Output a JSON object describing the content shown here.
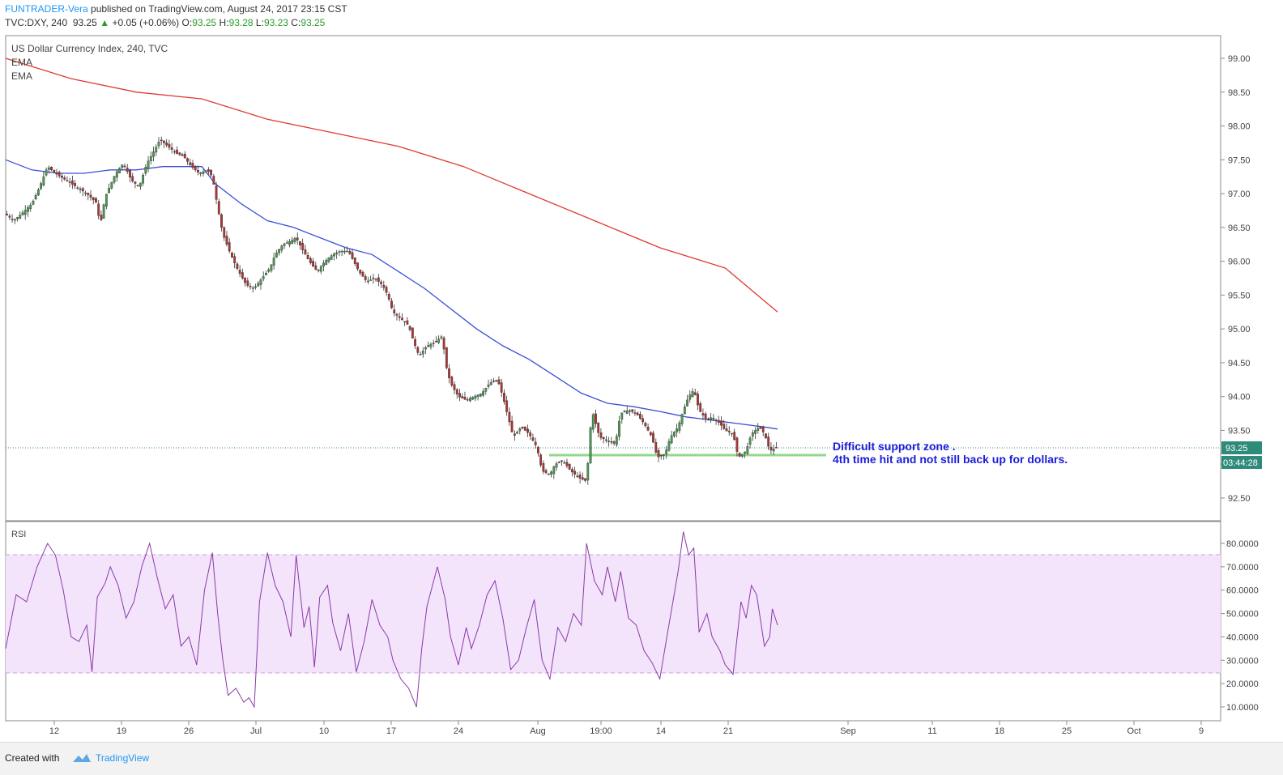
{
  "header": {
    "author": "FUNTRADER-Vera",
    "published_text": " published on TradingView.com, August 24, 2017 23:15 CST",
    "symbol": "TVC:DXY, 240",
    "last": "93.25",
    "change": "+0.05 (+0.06%)",
    "ohlc": {
      "O": "93.25",
      "H": "93.28",
      "L": "93.23",
      "C": "93.25"
    }
  },
  "legend": {
    "title": "US Dollar Currency Index, 240, TVC",
    "ema1": "EMA",
    "ema2": "EMA",
    "rsi": "RSI"
  },
  "annotation": {
    "line1": "Difficult support zone .",
    "line2": "4th time hit and not still back up for dollars."
  },
  "price_label": "93.25",
  "countdown_label": "03:44:28",
  "footer": {
    "created_with": "Created with",
    "brand": "TradingView"
  },
  "colors": {
    "up": "#4a9a52",
    "down": "#b03434",
    "ema_fast": "#3c4fd6",
    "ema_slow": "#e03a32",
    "rsi": "#8a3aa8",
    "support": "#90d88a",
    "annotation": "#1c1cd8"
  },
  "chart_data": {
    "type": "line",
    "price_axis": {
      "ylim": [
        92.2,
        99.2
      ],
      "ticks": [
        "99.00",
        "98.50",
        "98.00",
        "97.50",
        "97.00",
        "96.50",
        "96.00",
        "95.50",
        "95.00",
        "94.50",
        "94.00",
        "93.50",
        "93.00",
        "92.50"
      ]
    },
    "rsi_axis": {
      "ylim": [
        5,
        88
      ],
      "ticks": [
        "80.0000",
        "70.0000",
        "60.0000",
        "50.0000",
        "40.0000",
        "30.0000",
        "20.0000",
        "10.0000"
      ],
      "band": [
        25,
        75
      ]
    },
    "x_ticks": [
      "12",
      "19",
      "26",
      "Jul",
      "10",
      "17",
      "24",
      "Aug",
      "19:00",
      "14",
      "21",
      "Sep",
      "11",
      "18",
      "25",
      "Oct",
      "9"
    ],
    "series": [
      {
        "key": "close",
        "path": [
          [
            0,
            96.7
          ],
          [
            6,
            96.6
          ],
          [
            12,
            96.7
          ],
          [
            20,
            96.85
          ],
          [
            26,
            97.1
          ],
          [
            32,
            97.4
          ],
          [
            38,
            97.3
          ],
          [
            46,
            97.2
          ],
          [
            54,
            97.1
          ],
          [
            62,
            97.0
          ],
          [
            70,
            96.85
          ],
          [
            72,
            96.5
          ],
          [
            76,
            96.95
          ],
          [
            84,
            97.3
          ],
          [
            90,
            97.45
          ],
          [
            96,
            97.2
          ],
          [
            102,
            97.1
          ],
          [
            108,
            97.45
          ],
          [
            114,
            97.65
          ],
          [
            118,
            97.8
          ],
          [
            124,
            97.7
          ],
          [
            130,
            97.6
          ],
          [
            136,
            97.55
          ],
          [
            142,
            97.4
          ],
          [
            148,
            97.3
          ],
          [
            154,
            97.35
          ],
          [
            158,
            97.25
          ],
          [
            162,
            96.8
          ],
          [
            166,
            96.4
          ],
          [
            172,
            96.1
          ],
          [
            178,
            95.85
          ],
          [
            184,
            95.65
          ],
          [
            190,
            95.6
          ],
          [
            196,
            95.75
          ],
          [
            202,
            95.9
          ],
          [
            206,
            96.1
          ],
          [
            212,
            96.25
          ],
          [
            218,
            96.3
          ],
          [
            222,
            96.35
          ],
          [
            226,
            96.2
          ],
          [
            232,
            96.0
          ],
          [
            238,
            95.85
          ],
          [
            244,
            96.0
          ],
          [
            250,
            96.1
          ],
          [
            256,
            96.15
          ],
          [
            262,
            96.15
          ],
          [
            266,
            96.0
          ],
          [
            270,
            95.85
          ],
          [
            276,
            95.7
          ],
          [
            282,
            95.75
          ],
          [
            288,
            95.65
          ],
          [
            292,
            95.5
          ],
          [
            296,
            95.25
          ],
          [
            302,
            95.15
          ],
          [
            308,
            95.05
          ],
          [
            312,
            94.8
          ],
          [
            316,
            94.6
          ],
          [
            322,
            94.75
          ],
          [
            328,
            94.8
          ],
          [
            334,
            94.9
          ],
          [
            336,
            94.5
          ],
          [
            340,
            94.2
          ],
          [
            346,
            94.0
          ],
          [
            352,
            93.95
          ],
          [
            358,
            94.0
          ],
          [
            364,
            94.05
          ],
          [
            370,
            94.2
          ],
          [
            376,
            94.25
          ],
          [
            380,
            94.0
          ],
          [
            384,
            93.7
          ],
          [
            388,
            93.4
          ],
          [
            394,
            93.55
          ],
          [
            400,
            93.45
          ],
          [
            406,
            93.25
          ],
          [
            410,
            92.9
          ],
          [
            416,
            92.85
          ],
          [
            420,
            93.0
          ],
          [
            426,
            93.05
          ],
          [
            432,
            92.9
          ],
          [
            438,
            92.8
          ],
          [
            444,
            92.75
          ],
          [
            448,
            93.8
          ],
          [
            454,
            93.4
          ],
          [
            460,
            93.35
          ],
          [
            466,
            93.3
          ],
          [
            470,
            93.75
          ],
          [
            476,
            93.8
          ],
          [
            482,
            93.75
          ],
          [
            488,
            93.6
          ],
          [
            494,
            93.4
          ],
          [
            498,
            93.1
          ],
          [
            504,
            93.15
          ],
          [
            508,
            93.4
          ],
          [
            514,
            93.55
          ],
          [
            518,
            93.8
          ],
          [
            522,
            94.0
          ],
          [
            526,
            94.1
          ],
          [
            530,
            93.8
          ],
          [
            536,
            93.65
          ],
          [
            540,
            93.7
          ],
          [
            546,
            93.6
          ],
          [
            550,
            93.5
          ],
          [
            556,
            93.45
          ],
          [
            560,
            93.1
          ],
          [
            566,
            93.2
          ],
          [
            570,
            93.45
          ],
          [
            576,
            93.55
          ],
          [
            580,
            93.45
          ],
          [
            584,
            93.2
          ],
          [
            590,
            93.25
          ]
        ]
      },
      {
        "key": "ema_fast",
        "path": [
          [
            0,
            97.5
          ],
          [
            20,
            97.35
          ],
          [
            40,
            97.3
          ],
          [
            60,
            97.3
          ],
          [
            80,
            97.35
          ],
          [
            100,
            97.35
          ],
          [
            120,
            97.4
          ],
          [
            140,
            97.4
          ],
          [
            150,
            97.4
          ],
          [
            160,
            97.15
          ],
          [
            180,
            96.85
          ],
          [
            200,
            96.6
          ],
          [
            220,
            96.5
          ],
          [
            240,
            96.35
          ],
          [
            260,
            96.2
          ],
          [
            280,
            96.1
          ],
          [
            300,
            95.85
          ],
          [
            320,
            95.6
          ],
          [
            340,
            95.3
          ],
          [
            360,
            95.0
          ],
          [
            380,
            94.75
          ],
          [
            400,
            94.55
          ],
          [
            420,
            94.3
          ],
          [
            440,
            94.05
          ],
          [
            460,
            93.9
          ],
          [
            480,
            93.85
          ],
          [
            500,
            93.78
          ],
          [
            520,
            93.7
          ],
          [
            540,
            93.65
          ],
          [
            560,
            93.6
          ],
          [
            580,
            93.55
          ],
          [
            590,
            93.52
          ]
        ]
      },
      {
        "key": "ema_slow",
        "path": [
          [
            0,
            99.0
          ],
          [
            50,
            98.7
          ],
          [
            100,
            98.5
          ],
          [
            150,
            98.4
          ],
          [
            200,
            98.1
          ],
          [
            250,
            97.9
          ],
          [
            300,
            97.7
          ],
          [
            350,
            97.4
          ],
          [
            400,
            97.0
          ],
          [
            450,
            96.6
          ],
          [
            500,
            96.2
          ],
          [
            550,
            95.9
          ],
          [
            590,
            95.25
          ]
        ]
      },
      {
        "key": "rsi",
        "path": [
          [
            0,
            35
          ],
          [
            8,
            58
          ],
          [
            16,
            55
          ],
          [
            24,
            70
          ],
          [
            32,
            80
          ],
          [
            38,
            75
          ],
          [
            44,
            60
          ],
          [
            50,
            40
          ],
          [
            56,
            38
          ],
          [
            62,
            45
          ],
          [
            66,
            25
          ],
          [
            70,
            57
          ],
          [
            76,
            63
          ],
          [
            80,
            70
          ],
          [
            86,
            62
          ],
          [
            92,
            48
          ],
          [
            98,
            55
          ],
          [
            104,
            70
          ],
          [
            110,
            80
          ],
          [
            116,
            65
          ],
          [
            122,
            52
          ],
          [
            128,
            58
          ],
          [
            134,
            36
          ],
          [
            140,
            40
          ],
          [
            146,
            28
          ],
          [
            152,
            60
          ],
          [
            158,
            76
          ],
          [
            162,
            50
          ],
          [
            166,
            30
          ],
          [
            170,
            15
          ],
          [
            176,
            18
          ],
          [
            182,
            12
          ],
          [
            186,
            14
          ],
          [
            190,
            10
          ],
          [
            194,
            55
          ],
          [
            200,
            76
          ],
          [
            206,
            62
          ],
          [
            212,
            55
          ],
          [
            218,
            40
          ],
          [
            222,
            75
          ],
          [
            228,
            44
          ],
          [
            232,
            53
          ],
          [
            236,
            27
          ],
          [
            240,
            57
          ],
          [
            246,
            62
          ],
          [
            250,
            46
          ],
          [
            256,
            34
          ],
          [
            262,
            50
          ],
          [
            268,
            25
          ],
          [
            274,
            38
          ],
          [
            280,
            56
          ],
          [
            286,
            45
          ],
          [
            292,
            40
          ],
          [
            296,
            30
          ],
          [
            302,
            22
          ],
          [
            308,
            18
          ],
          [
            314,
            10
          ],
          [
            318,
            35
          ],
          [
            322,
            53
          ],
          [
            330,
            70
          ],
          [
            336,
            56
          ],
          [
            340,
            40
          ],
          [
            346,
            28
          ],
          [
            352,
            44
          ],
          [
            356,
            35
          ],
          [
            362,
            45
          ],
          [
            368,
            58
          ],
          [
            374,
            64
          ],
          [
            380,
            48
          ],
          [
            386,
            26
          ],
          [
            392,
            30
          ],
          [
            398,
            44
          ],
          [
            404,
            56
          ],
          [
            410,
            30
          ],
          [
            416,
            22
          ],
          [
            422,
            44
          ],
          [
            428,
            38
          ],
          [
            434,
            50
          ],
          [
            440,
            45
          ],
          [
            444,
            80
          ],
          [
            450,
            64
          ],
          [
            456,
            58
          ],
          [
            460,
            70
          ],
          [
            466,
            55
          ],
          [
            470,
            68
          ],
          [
            476,
            48
          ],
          [
            482,
            45
          ],
          [
            488,
            34
          ],
          [
            494,
            29
          ],
          [
            500,
            22
          ],
          [
            506,
            42
          ],
          [
            510,
            55
          ],
          [
            514,
            68
          ],
          [
            518,
            85
          ],
          [
            522,
            75
          ],
          [
            526,
            78
          ],
          [
            530,
            42
          ],
          [
            536,
            50
          ],
          [
            540,
            40
          ],
          [
            546,
            34
          ],
          [
            550,
            28
          ],
          [
            556,
            24
          ],
          [
            562,
            55
          ],
          [
            566,
            48
          ],
          [
            570,
            62
          ],
          [
            574,
            58
          ],
          [
            580,
            36
          ],
          [
            584,
            40
          ],
          [
            586,
            52
          ],
          [
            590,
            45
          ]
        ]
      }
    ]
  }
}
